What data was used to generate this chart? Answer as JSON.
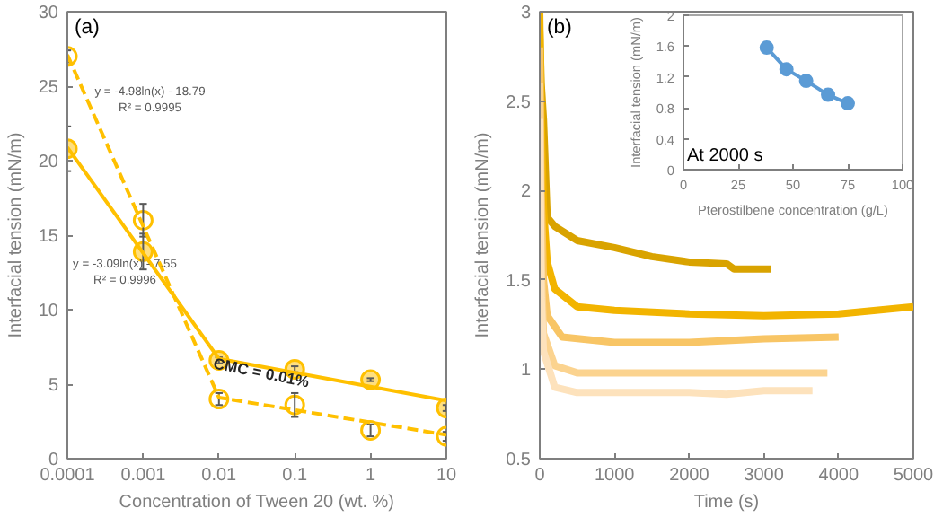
{
  "chart_data": [
    {
      "type": "scatter",
      "title": "(a)",
      "xlabel": "Concentration of Tween 20 (wt. %)",
      "ylabel": "Interfacial tension (mN/m)",
      "log": "x",
      "x": [
        0.0001,
        0.001,
        0.01,
        0.1,
        1,
        10
      ],
      "xlim": [
        0.0001,
        10
      ],
      "xticks": [
        {
          "value": 0.0001,
          "label": "0.0001"
        },
        {
          "value": 0.001,
          "label": "0.001"
        },
        {
          "value": 0.01,
          "label": "0.01"
        },
        {
          "value": 0.1,
          "label": "0.1"
        },
        {
          "value": 1,
          "label": "1"
        },
        {
          "value": 10,
          "label": "10"
        }
      ],
      "ylim": [
        0,
        30
      ],
      "yticks": [
        0,
        5,
        10,
        15,
        20,
        25,
        30
      ],
      "grid": false,
      "marker": "circle",
      "series": [
        {
          "type": "scatter",
          "color": "#ffc000",
          "values": [
            20.8,
            13.9,
            6.6,
            6.0,
            5.3,
            3.4
          ],
          "errors": [
            1.5,
            1.2,
            0.2,
            0.2,
            0.1,
            0.2
          ]
        },
        {
          "type": "scatter",
          "color": "#ffc000",
          "values": [
            27.0,
            16.0,
            4.0,
            3.6,
            1.9,
            1.5
          ],
          "errors": [
            0.4,
            1.1,
            0.4,
            0.8,
            0.4,
            0.3
          ]
        },
        {
          "type": "line",
          "color": "#ffc000",
          "x": [
            0.0001,
            0.01,
            10
          ],
          "values": [
            20.9,
            6.7,
            3.9
          ],
          "marker": "none",
          "line_style": "solid"
        },
        {
          "type": "line",
          "color": "#ffc000",
          "x": [
            0.0001,
            0.01,
            10
          ],
          "values": [
            27.1,
            4.1,
            1.6
          ],
          "marker": "none",
          "line_style": "dashed"
        }
      ],
      "annotations": [
        "y = -4.98ln(x) - 18.79",
        "R² = 0.9995",
        "y = -3.09ln(x) - 7.55",
        "R² = 0.9996",
        "CMC = 0.01%"
      ]
    },
    {
      "type": "line",
      "title": "(b)",
      "xlabel": "Time (s)",
      "ylabel": "Interfacial tension (mN/m)",
      "xlim": [
        0,
        5000
      ],
      "xticks": [
        0,
        1000,
        2000,
        3000,
        4000,
        5000
      ],
      "ylim": [
        0.5,
        3
      ],
      "yticks": [
        0.5,
        1,
        1.5,
        2,
        2.5,
        3
      ],
      "grid": false,
      "marker": "none",
      "line_style": "solid",
      "series": [
        {
          "color": "#d9a300",
          "x": [
            0,
            20,
            50,
            100,
            200,
            500,
            1000,
            1500,
            2000,
            2500,
            2600,
            3100
          ],
          "values": [
            2.9,
            2.6,
            2.4,
            1.85,
            1.8,
            1.72,
            1.68,
            1.63,
            1.6,
            1.59,
            1.56,
            1.56
          ]
        },
        {
          "color": "#f2b400",
          "x": [
            0,
            20,
            50,
            100,
            200,
            500,
            1000,
            2000,
            3000,
            4000,
            4500,
            5000
          ],
          "values": [
            3.0,
            2.4,
            1.9,
            1.6,
            1.45,
            1.35,
            1.33,
            1.31,
            1.3,
            1.31,
            1.33,
            1.35
          ]
        },
        {
          "color": "#f8c565",
          "x": [
            0,
            20,
            50,
            100,
            300,
            1000,
            2000,
            3000,
            4000
          ],
          "values": [
            2.8,
            2.0,
            1.5,
            1.3,
            1.18,
            1.15,
            1.15,
            1.17,
            1.18
          ]
        },
        {
          "color": "#fbd38f",
          "x": [
            0,
            20,
            50,
            200,
            500,
            2000,
            3000,
            3850
          ],
          "values": [
            2.6,
            1.6,
            1.2,
            1.02,
            0.98,
            0.98,
            0.98,
            0.98
          ]
        },
        {
          "color": "#fde2bc",
          "x": [
            0,
            20,
            50,
            200,
            500,
            2000,
            2500,
            3000,
            3650
          ],
          "values": [
            2.4,
            1.4,
            1.1,
            0.9,
            0.87,
            0.87,
            0.86,
            0.88,
            0.88
          ]
        }
      ]
    },
    {
      "type": "line",
      "xlabel": "Pterostilbene concentration (g/L)",
      "ylabel": "Interfacial tension (mN/m)",
      "xlim": [
        0,
        100
      ],
      "xticks": [
        0,
        25,
        50,
        75,
        100
      ],
      "ylim": [
        0,
        2
      ],
      "yticks": [
        0,
        0.4,
        0.8,
        1.2,
        1.6,
        2
      ],
      "grid": false,
      "marker": "circle",
      "line_style": "solid",
      "series": [
        {
          "color": "#5b9bd5",
          "x": [
            38,
            47,
            56,
            66,
            75
          ],
          "values": [
            1.58,
            1.3,
            1.15,
            0.97,
            0.86
          ]
        }
      ],
      "annotations": [
        "At 2000 s"
      ]
    }
  ]
}
